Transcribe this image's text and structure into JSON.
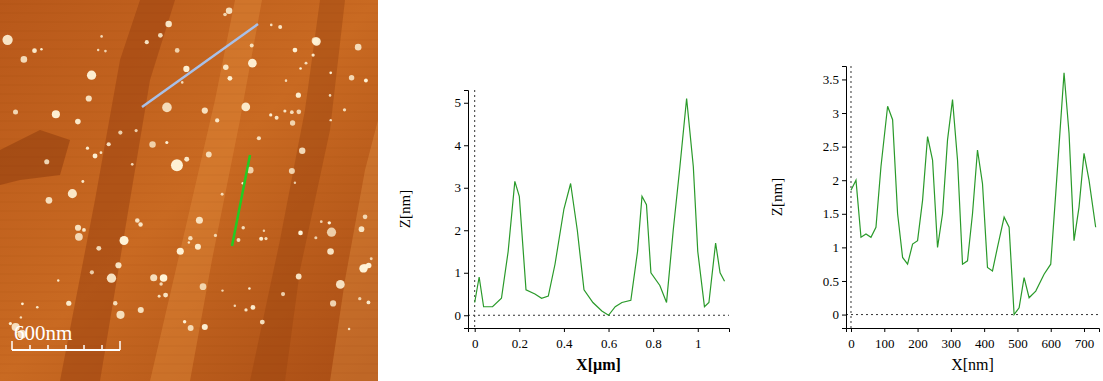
{
  "image": {
    "scale_bar_label": "600nm"
  },
  "chart_data": [
    {
      "type": "line",
      "x_label": "X[µm]",
      "y_label": "Z[nm]",
      "x": [
        0,
        0.02,
        0.04,
        0.08,
        0.12,
        0.15,
        0.18,
        0.2,
        0.23,
        0.27,
        0.3,
        0.33,
        0.36,
        0.4,
        0.43,
        0.46,
        0.49,
        0.53,
        0.57,
        0.6,
        0.63,
        0.66,
        0.7,
        0.73,
        0.75,
        0.77,
        0.79,
        0.83,
        0.86,
        0.89,
        0.92,
        0.95,
        0.98,
        1.0,
        1.03,
        1.05,
        1.08,
        1.1,
        1.12
      ],
      "values": [
        0.3,
        0.9,
        0.2,
        0.2,
        0.4,
        1.5,
        3.15,
        2.8,
        0.6,
        0.5,
        0.4,
        0.45,
        1.2,
        2.5,
        3.1,
        2.0,
        0.6,
        0.3,
        0.1,
        0.0,
        0.2,
        0.3,
        0.35,
        1.5,
        2.8,
        2.6,
        1.0,
        0.7,
        0.3,
        2.0,
        3.5,
        5.1,
        3.5,
        1.5,
        0.2,
        0.3,
        1.7,
        1.0,
        0.8
      ],
      "color": "#2a9a2a",
      "xlim": [
        -0.03,
        1.14
      ],
      "ylim": [
        -0.3,
        5.3
      ],
      "xticks": [
        0,
        0.2,
        0.4,
        0.6,
        0.8,
        1
      ],
      "yticks": [
        0,
        1,
        2,
        3,
        4,
        5
      ],
      "grid": false
    },
    {
      "type": "line",
      "x_label": "X[nm]",
      "y_label": "Z[nm]",
      "x": [
        0,
        15,
        30,
        45,
        60,
        75,
        90,
        110,
        125,
        140,
        155,
        170,
        185,
        200,
        215,
        230,
        245,
        260,
        275,
        290,
        305,
        320,
        335,
        350,
        365,
        380,
        395,
        410,
        425,
        440,
        460,
        475,
        490,
        505,
        520,
        535,
        555,
        580,
        600,
        615,
        640,
        655,
        670,
        685,
        700,
        715,
        735
      ],
      "values": [
        1.85,
        2.0,
        1.15,
        1.2,
        1.15,
        1.3,
        2.2,
        3.1,
        2.9,
        1.5,
        0.85,
        0.75,
        1.05,
        1.1,
        1.7,
        2.65,
        2.3,
        1.0,
        1.5,
        2.6,
        3.2,
        2.3,
        0.75,
        0.8,
        1.5,
        2.45,
        1.95,
        0.7,
        0.65,
        1.0,
        1.45,
        1.3,
        0.0,
        0.1,
        0.55,
        0.25,
        0.35,
        0.6,
        0.75,
        1.8,
        3.6,
        2.7,
        1.1,
        1.6,
        2.4,
        2.0,
        1.3
      ],
      "color": "#2a9a2a",
      "xlim": [
        -15,
        745
      ],
      "ylim": [
        -0.2,
        3.7
      ],
      "xticks": [
        0,
        100,
        200,
        300,
        400,
        500,
        600,
        700
      ],
      "yticks": [
        0,
        0.5,
        1,
        1.5,
        2,
        2.5,
        3,
        3.5
      ],
      "grid": false
    }
  ]
}
